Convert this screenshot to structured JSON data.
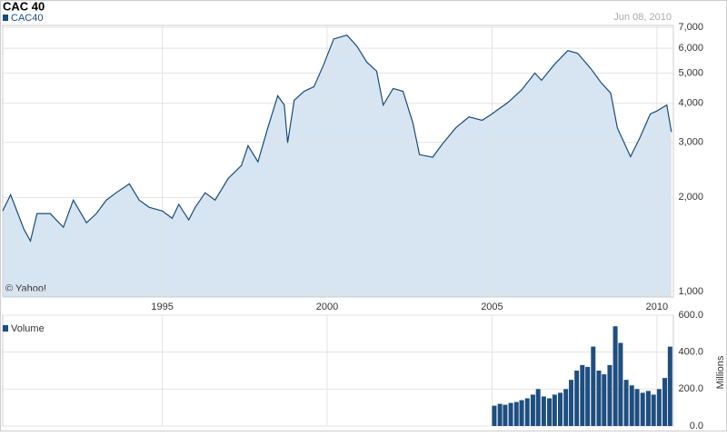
{
  "chart_data": [
    {
      "type": "area",
      "title": "CAC 40",
      "subtitle": "Jun 08, 2010",
      "annotation": "© Yahoo!",
      "x": [
        1990.16,
        1990.4,
        1990.8,
        1991.0,
        1991.2,
        1991.6,
        1992.0,
        1992.3,
        1992.7,
        1993.0,
        1993.3,
        1993.6,
        1994.0,
        1994.3,
        1994.6,
        1995.0,
        1995.3,
        1995.5,
        1995.8,
        1996.0,
        1996.3,
        1996.6,
        1997.0,
        1997.4,
        1997.6,
        1997.9,
        1998.2,
        1998.5,
        1998.7,
        1998.8,
        1999.0,
        1999.3,
        1999.6,
        1999.9,
        2000.2,
        2000.6,
        2000.9,
        2001.2,
        2001.5,
        2001.7,
        2002.0,
        2002.3,
        2002.6,
        2002.8,
        2003.2,
        2003.5,
        2003.9,
        2004.3,
        2004.7,
        2005.0,
        2005.5,
        2005.9,
        2006.3,
        2006.5,
        2006.9,
        2007.3,
        2007.6,
        2008.0,
        2008.3,
        2008.6,
        2008.8,
        2009.2,
        2009.5,
        2009.8,
        2010.0,
        2010.3,
        2010.44
      ],
      "series": [
        {
          "name": "CAC40",
          "color": "#1a4b7a",
          "fill": "#d6e5f1",
          "values": [
            1811,
            2040,
            1585,
            1450,
            1775,
            1775,
            1605,
            1960,
            1660,
            1775,
            1960,
            2070,
            2210,
            1960,
            1860,
            1810,
            1715,
            1900,
            1695,
            1860,
            2070,
            1960,
            2300,
            2530,
            2930,
            2600,
            3340,
            4230,
            3950,
            2990,
            4090,
            4370,
            4520,
            5340,
            6430,
            6610,
            6100,
            5420,
            5070,
            3950,
            4460,
            4370,
            3460,
            2740,
            2690,
            2970,
            3340,
            3620,
            3530,
            3700,
            4040,
            4420,
            5000,
            4740,
            5340,
            5900,
            5780,
            5160,
            4670,
            4310,
            3340,
            2700,
            3130,
            3700,
            3780,
            3950,
            3240
          ]
        }
      ],
      "xlim": [
        1990.16,
        2010.5
      ],
      "xticks": [
        1995,
        2000,
        2005,
        2010
      ],
      "ylim": [
        960,
        7100
      ],
      "log_scale": true,
      "grid": true,
      "yticks": [
        {
          "value": 1000,
          "label": "1,000"
        },
        {
          "value": 2000,
          "label": "2,000"
        },
        {
          "value": 3000,
          "label": "3,000"
        },
        {
          "value": 4000,
          "label": "4,000"
        },
        {
          "value": 5000,
          "label": "5,000"
        },
        {
          "value": 6000,
          "label": "6,000"
        },
        {
          "value": 7000,
          "label": "7,000"
        }
      ]
    },
    {
      "type": "bar",
      "y_label": "Millions",
      "x": [
        2005.0,
        2005.17,
        2005.33,
        2005.5,
        2005.67,
        2005.83,
        2006.0,
        2006.17,
        2006.33,
        2006.5,
        2006.67,
        2006.83,
        2007.0,
        2007.17,
        2007.33,
        2007.5,
        2007.67,
        2007.83,
        2008.0,
        2008.17,
        2008.33,
        2008.5,
        2008.67,
        2008.83,
        2009.0,
        2009.17,
        2009.33,
        2009.5,
        2009.67,
        2009.83,
        2010.0,
        2010.17,
        2010.33
      ],
      "series": [
        {
          "name": "Volume",
          "color": "#1f4e80",
          "values": [
            110,
            120,
            115,
            125,
            130,
            140,
            150,
            170,
            200,
            160,
            150,
            170,
            180,
            200,
            250,
            300,
            330,
            320,
            430,
            300,
            280,
            330,
            540,
            450,
            250,
            220,
            200,
            180,
            190,
            170,
            200,
            260,
            430
          ]
        }
      ],
      "xlim": [
        1990.16,
        2010.5
      ],
      "ylim": [
        0,
        600
      ],
      "grid": true,
      "yticks": [
        {
          "value": 0,
          "label": "0.0"
        },
        {
          "value": 200,
          "label": "200.0"
        },
        {
          "value": 400,
          "label": "400.0"
        },
        {
          "value": 600,
          "label": "600.0"
        }
      ]
    }
  ]
}
